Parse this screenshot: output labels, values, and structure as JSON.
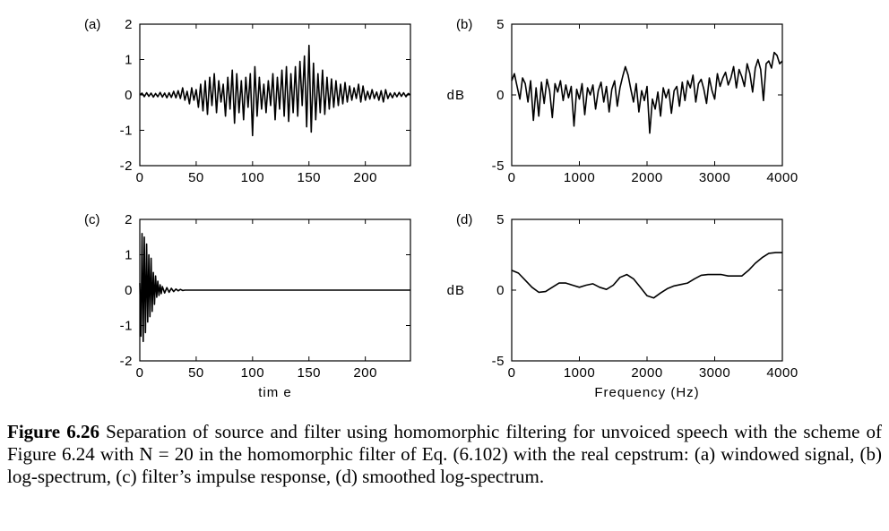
{
  "caption": {
    "label": "Figure 6.26",
    "text": " Separation of source and filter using homomorphic filtering for unvoiced speech with the scheme of Figure 6.24 with N = 20 in the homomorphic filter of Eq. (6.102) with the real cepstrum: (a) windowed signal, (b) log-spectrum, (c) filter’s impulse response, (d) smoothed log-spectrum."
  },
  "chart_data": [
    {
      "id": "a",
      "type": "line",
      "panel_label": "(a)",
      "xlabel": "",
      "ylabel": "",
      "xlim": [
        0,
        240
      ],
      "ylim": [
        -2,
        2
      ],
      "xticks": [
        0,
        50,
        100,
        150,
        200
      ],
      "yticks": [
        -2,
        -1,
        0,
        1,
        2
      ],
      "series": [
        {
          "x": [
            0,
            2,
            4,
            6,
            8,
            10,
            12,
            14,
            16,
            18,
            20,
            22,
            24,
            26,
            28,
            30,
            32,
            34,
            36,
            38,
            40,
            42,
            44,
            46,
            48,
            50,
            52,
            54,
            56,
            58,
            60,
            62,
            64,
            66,
            68,
            70,
            72,
            74,
            76,
            78,
            80,
            82,
            84,
            86,
            88,
            90,
            92,
            94,
            96,
            98,
            100,
            102,
            104,
            106,
            108,
            110,
            112,
            114,
            116,
            118,
            120,
            122,
            124,
            126,
            128,
            130,
            132,
            134,
            136,
            138,
            140,
            142,
            144,
            146,
            148,
            150,
            152,
            154,
            156,
            158,
            160,
            162,
            164,
            166,
            168,
            170,
            172,
            174,
            176,
            178,
            180,
            182,
            184,
            186,
            188,
            190,
            192,
            194,
            196,
            198,
            200,
            202,
            204,
            206,
            208,
            210,
            212,
            214,
            216,
            218,
            220,
            222,
            224,
            226,
            228,
            230,
            232,
            234,
            236,
            238,
            240
          ],
          "y": [
            0,
            0.05,
            -0.05,
            0.06,
            -0.04,
            0.05,
            -0.06,
            0.04,
            -0.05,
            0.07,
            -0.06,
            0.05,
            -0.08,
            0.06,
            -0.07,
            0.1,
            -0.08,
            0.12,
            -0.1,
            0.2,
            -0.15,
            0.1,
            -0.25,
            0.2,
            -0.15,
            0.15,
            -0.35,
            0.3,
            -0.45,
            0.4,
            -0.55,
            0.5,
            -0.3,
            0.6,
            -0.5,
            0.4,
            -0.2,
            0.3,
            -0.6,
            0.5,
            -0.4,
            0.7,
            -0.8,
            0.6,
            -0.5,
            0.4,
            -0.7,
            0.5,
            -0.35,
            0.6,
            -1.15,
            0.8,
            -0.6,
            0.5,
            -0.4,
            0.3,
            -0.5,
            0.4,
            -0.3,
            0.6,
            -0.7,
            0.5,
            -0.4,
            0.7,
            -0.6,
            0.8,
            -0.75,
            0.6,
            -0.5,
            0.8,
            -0.6,
            0.95,
            -0.3,
            1.1,
            -0.9,
            1.4,
            -1.05,
            0.9,
            -0.7,
            0.6,
            -0.5,
            0.7,
            -0.55,
            0.5,
            -0.4,
            0.45,
            -0.35,
            0.4,
            -0.3,
            0.3,
            -0.25,
            0.35,
            -0.2,
            0.25,
            -0.15,
            0.2,
            -0.1,
            0.3,
            -0.2,
            0.25,
            -0.15,
            0.1,
            -0.12,
            0.15,
            -0.1,
            0.08,
            -0.15,
            0.12,
            -0.2,
            0.15,
            -0.1,
            0.05,
            -0.08,
            0.06,
            -0.05,
            0.07,
            -0.04,
            0.06,
            -0.05,
            0.04,
            0
          ]
        }
      ]
    },
    {
      "id": "b",
      "type": "line",
      "panel_label": "(b)",
      "xlabel": "",
      "ylabel": "dB",
      "xlim": [
        0,
        4000
      ],
      "ylim": [
        -5,
        5
      ],
      "xticks": [
        0,
        1000,
        2000,
        3000,
        4000
      ],
      "yticks": [
        -5,
        0,
        5
      ],
      "series": [
        {
          "x": [
            0,
            40,
            80,
            120,
            160,
            200,
            240,
            280,
            320,
            360,
            400,
            440,
            480,
            520,
            560,
            600,
            640,
            680,
            720,
            760,
            800,
            840,
            880,
            920,
            960,
            1000,
            1040,
            1080,
            1120,
            1160,
            1200,
            1240,
            1280,
            1320,
            1360,
            1400,
            1440,
            1480,
            1520,
            1560,
            1600,
            1640,
            1680,
            1720,
            1760,
            1800,
            1840,
            1880,
            1920,
            1960,
            2000,
            2040,
            2080,
            2120,
            2160,
            2200,
            2240,
            2280,
            2320,
            2360,
            2400,
            2440,
            2480,
            2520,
            2560,
            2600,
            2640,
            2680,
            2720,
            2760,
            2800,
            2840,
            2880,
            2920,
            2960,
            3000,
            3040,
            3080,
            3120,
            3160,
            3200,
            3240,
            3280,
            3320,
            3360,
            3400,
            3440,
            3480,
            3520,
            3560,
            3600,
            3640,
            3680,
            3720,
            3760,
            3800,
            3840,
            3880,
            3920,
            3960,
            4000
          ],
          "y": [
            1.0,
            1.5,
            0.6,
            -0.3,
            1.2,
            0.8,
            -0.5,
            1.0,
            -1.8,
            0.5,
            -1.5,
            0.9,
            -0.6,
            1.1,
            0.3,
            -1.6,
            0.8,
            0.2,
            1.0,
            -0.4,
            0.7,
            -0.2,
            0.6,
            -2.2,
            0.4,
            -0.3,
            0.8,
            -1.4,
            0.5,
            0.0,
            0.7,
            -1.0,
            0.3,
            0.9,
            -0.5,
            0.6,
            -1.2,
            0.4,
            1.0,
            -0.8,
            0.5,
            1.3,
            2.0,
            1.4,
            0.4,
            -0.5,
            0.8,
            -1.2,
            0.3,
            -0.4,
            0.6,
            -2.7,
            -0.3,
            -1.0,
            0.2,
            -1.5,
            0.5,
            -0.2,
            0.4,
            -1.3,
            0.3,
            0.6,
            -0.8,
            0.9,
            -0.4,
            1.0,
            0.5,
            1.4,
            -0.5,
            0.8,
            1.1,
            0.4,
            -0.6,
            1.2,
            0.3,
            -0.3,
            1.5,
            0.6,
            1.2,
            1.6,
            0.7,
            1.2,
            2.0,
            0.5,
            1.8,
            1.3,
            0.6,
            2.2,
            1.5,
            0.2,
            1.9,
            2.5,
            1.8,
            -0.4,
            2.2,
            2.4,
            1.9,
            3.0,
            2.8,
            2.2,
            2.4
          ]
        }
      ]
    },
    {
      "id": "c",
      "type": "line",
      "panel_label": "(c)",
      "xlabel": "tim e",
      "ylabel": "",
      "xlim": [
        0,
        240
      ],
      "ylim": [
        -2,
        2
      ],
      "xticks": [
        0,
        50,
        100,
        150,
        200
      ],
      "yticks": [
        -2,
        -1,
        0,
        1,
        2
      ],
      "series": [
        {
          "x": [
            0,
            1,
            2,
            3,
            4,
            5,
            6,
            7,
            8,
            9,
            10,
            11,
            12,
            13,
            14,
            15,
            16,
            17,
            18,
            19,
            20,
            22,
            24,
            26,
            28,
            30,
            32,
            34,
            36,
            38,
            40,
            60,
            90,
            120,
            150,
            180,
            210,
            240
          ],
          "y": [
            0.2,
            -1.3,
            1.6,
            -1.45,
            1.5,
            -1.2,
            1.3,
            -0.9,
            1.0,
            -0.75,
            0.9,
            -0.6,
            0.5,
            -0.4,
            0.4,
            -0.2,
            0.25,
            -0.15,
            0.15,
            -0.1,
            0.1,
            -0.08,
            0.07,
            -0.06,
            0.05,
            -0.04,
            0.03,
            -0.02,
            0.02,
            -0.01,
            0,
            0,
            0,
            0,
            0,
            0,
            0,
            0
          ]
        }
      ]
    },
    {
      "id": "d",
      "type": "line",
      "panel_label": "(d)",
      "xlabel": "Frequency (Hz)",
      "ylabel": "dB",
      "xlim": [
        0,
        4000
      ],
      "ylim": [
        -5,
        5
      ],
      "xticks": [
        0,
        1000,
        2000,
        3000,
        4000
      ],
      "yticks": [
        -5,
        0,
        5
      ],
      "series": [
        {
          "x": [
            0,
            100,
            200,
            300,
            400,
            500,
            600,
            700,
            800,
            900,
            1000,
            1100,
            1200,
            1300,
            1400,
            1500,
            1600,
            1700,
            1800,
            1900,
            2000,
            2100,
            2200,
            2300,
            2400,
            2500,
            2600,
            2700,
            2800,
            2900,
            3000,
            3100,
            3200,
            3300,
            3400,
            3500,
            3600,
            3700,
            3800,
            3900,
            4000
          ],
          "y": [
            1.4,
            1.2,
            0.7,
            0.2,
            -0.15,
            -0.1,
            0.2,
            0.5,
            0.5,
            0.35,
            0.2,
            0.35,
            0.45,
            0.2,
            0.05,
            0.35,
            0.9,
            1.1,
            0.8,
            0.2,
            -0.4,
            -0.55,
            -0.2,
            0.1,
            0.3,
            0.4,
            0.5,
            0.8,
            1.05,
            1.1,
            1.1,
            1.1,
            1.0,
            1.0,
            1.0,
            1.4,
            1.9,
            2.3,
            2.6,
            2.65,
            2.65
          ]
        }
      ]
    }
  ]
}
